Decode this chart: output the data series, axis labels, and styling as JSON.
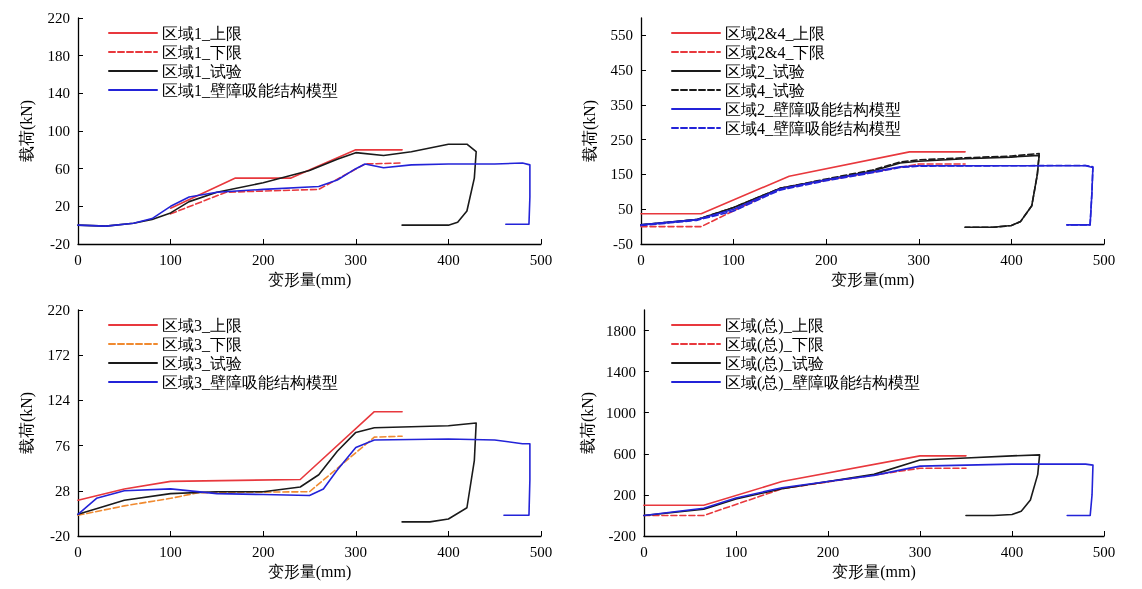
{
  "chart_data": [
    {
      "type": "line",
      "xlabel": "变形量(mm)",
      "ylabel": "载荷(kN)",
      "xlim": [
        0,
        500
      ],
      "xticks": [
        0,
        100,
        200,
        300,
        400,
        500
      ],
      "ylim": [
        -20,
        220
      ],
      "yticks": [
        -20,
        20,
        60,
        100,
        140,
        180,
        220
      ],
      "grid": false,
      "legend": "top left",
      "marker": "none",
      "series": [
        {
          "name": "区域1_上限",
          "color": "#e8383d",
          "line_style": "solid",
          "x": [
            100,
            170,
            230,
            300,
            350
          ],
          "values": [
            18,
            50,
            50,
            80,
            80
          ]
        },
        {
          "name": "区域1_下限",
          "color": "#e8383d",
          "line_style": "dashed",
          "x": [
            100,
            160,
            260,
            310,
            350
          ],
          "values": [
            12,
            35,
            38,
            65,
            66
          ]
        },
        {
          "name": "区域1_试验",
          "color": "#1a1a1a",
          "line_style": "solid",
          "x": [
            0,
            30,
            60,
            80,
            100,
            120,
            150,
            200,
            250,
            280,
            300,
            330,
            360,
            400,
            420,
            430,
            428,
            420,
            410,
            400,
            380,
            350
          ],
          "values": [
            0,
            -1,
            2,
            6,
            13,
            25,
            35,
            45,
            58,
            70,
            77,
            74,
            78,
            86,
            86,
            78,
            50,
            15,
            3,
            0,
            0,
            0
          ]
        },
        {
          "name": "区域1_壁障吸能结构模型",
          "color": "#2323d8",
          "line_style": "solid",
          "x": [
            0,
            30,
            60,
            80,
            100,
            120,
            150,
            200,
            260,
            280,
            300,
            310,
            330,
            360,
            400,
            450,
            480,
            488,
            488,
            487,
            470,
            462
          ],
          "values": [
            0,
            -1,
            2,
            7,
            20,
            30,
            35,
            38,
            41,
            48,
            60,
            65,
            61,
            64,
            65,
            65,
            66,
            64,
            30,
            1,
            1,
            1
          ]
        }
      ]
    },
    {
      "type": "line",
      "xlabel": "变形量(mm)",
      "ylabel": "载荷(kN)",
      "xlim": [
        0,
        500
      ],
      "xticks": [
        0,
        100,
        200,
        300,
        400,
        500
      ],
      "ylim": [
        -50,
        600
      ],
      "yticks": [
        -50,
        50,
        150,
        250,
        350,
        450,
        550
      ],
      "grid": false,
      "legend": "top left",
      "marker": "none",
      "series": [
        {
          "name": "区域2&4_上限",
          "color": "#e8383d",
          "line_style": "solid",
          "x": [
            0,
            65,
            160,
            290,
            350
          ],
          "values": [
            37,
            37,
            145,
            215,
            215
          ]
        },
        {
          "name": "区域2&4_下限",
          "color": "#e8383d",
          "line_style": "dashed",
          "x": [
            0,
            65,
            150,
            300,
            350
          ],
          "values": [
            0,
            0,
            110,
            180,
            180
          ]
        },
        {
          "name": "区域2_试验",
          "color": "#1a1a1a",
          "line_style": "solid",
          "x": [
            0,
            60,
            100,
            150,
            200,
            250,
            280,
            300,
            350,
            400,
            430,
            428,
            422,
            410,
            400,
            380,
            350
          ],
          "values": [
            5,
            20,
            55,
            110,
            135,
            160,
            183,
            188,
            195,
            200,
            205,
            150,
            60,
            15,
            3,
            -2,
            -2
          ]
        },
        {
          "name": "区域4_试验",
          "color": "#1a1a1a",
          "line_style": "dashed",
          "x": [
            0,
            60,
            100,
            150,
            200,
            250,
            280,
            300,
            350,
            400,
            430,
            428,
            422,
            410,
            400,
            380,
            350
          ],
          "values": [
            5,
            20,
            55,
            110,
            137,
            163,
            186,
            192,
            198,
            203,
            210,
            150,
            60,
            15,
            3,
            -2,
            -2
          ]
        },
        {
          "name": "区域2_壁障吸能结构模型",
          "color": "#2323d8",
          "line_style": "solid",
          "x": [
            0,
            60,
            100,
            150,
            200,
            250,
            280,
            300,
            400,
            480,
            488,
            487,
            485,
            470,
            460
          ],
          "values": [
            5,
            20,
            50,
            108,
            135,
            158,
            172,
            175,
            175,
            175,
            170,
            100,
            5,
            5,
            5
          ]
        },
        {
          "name": "区域4_壁障吸能结构模型",
          "color": "#2323d8",
          "line_style": "dashed",
          "x": [
            0,
            60,
            100,
            150,
            200,
            250,
            280,
            300,
            400,
            480,
            488,
            487,
            485,
            470,
            460
          ],
          "values": [
            3,
            18,
            45,
            105,
            132,
            155,
            170,
            174,
            175,
            176,
            172,
            100,
            5,
            5,
            5
          ]
        }
      ]
    },
    {
      "type": "line",
      "xlabel": "变形量(mm)",
      "ylabel": "载荷(kN)",
      "xlim": [
        0,
        500
      ],
      "xticks": [
        0,
        100,
        200,
        300,
        400,
        500
      ],
      "ylim": [
        -20,
        220
      ],
      "yticks": [
        -20,
        28,
        76,
        124,
        172,
        220
      ],
      "grid": false,
      "legend": "top left",
      "marker": "none",
      "series": [
        {
          "name": "区域3_上限",
          "color": "#e8383d",
          "line_style": "solid",
          "x": [
            0,
            50,
            100,
            240,
            320,
            350
          ],
          "values": [
            18,
            30,
            38,
            40,
            112,
            112
          ]
        },
        {
          "name": "区域3_下限",
          "color": "#f08a30",
          "line_style": "dashed",
          "x": [
            0,
            50,
            100,
            130,
            250,
            320,
            350
          ],
          "values": [
            2,
            12,
            20,
            26,
            27,
            85,
            86
          ]
        },
        {
          "name": "区域3_试验",
          "color": "#1a1a1a",
          "line_style": "solid",
          "x": [
            0,
            50,
            100,
            150,
            200,
            240,
            260,
            280,
            300,
            320,
            400,
            430,
            428,
            420,
            400,
            380,
            350
          ],
          "values": [
            3,
            18,
            25,
            27,
            27,
            32,
            45,
            70,
            90,
            95,
            97,
            100,
            60,
            10,
            -2,
            -5,
            -5
          ]
        },
        {
          "name": "区域3_壁障吸能结构模型",
          "color": "#2323d8",
          "line_style": "solid",
          "x": [
            0,
            20,
            50,
            100,
            150,
            200,
            250,
            265,
            280,
            300,
            320,
            400,
            450,
            480,
            488,
            488,
            487,
            470,
            460
          ],
          "values": [
            3,
            20,
            28,
            30,
            25,
            24,
            23,
            30,
            50,
            74,
            82,
            83,
            82,
            78,
            78,
            40,
            2,
            2,
            2
          ]
        }
      ]
    },
    {
      "type": "line",
      "xlabel": "变形量(mm)",
      "ylabel": "载荷(kN)",
      "xlim": [
        0,
        500
      ],
      "xticks": [
        0,
        100,
        200,
        300,
        400,
        500
      ],
      "ylim": [
        -200,
        2000
      ],
      "yticks": [
        -200,
        200,
        600,
        1000,
        1400,
        1800
      ],
      "grid": false,
      "legend": "top left",
      "marker": "none",
      "series": [
        {
          "name": "区域(总)_上限",
          "color": "#e8383d",
          "line_style": "solid",
          "x": [
            0,
            65,
            150,
            300,
            350
          ],
          "values": [
            100,
            100,
            330,
            580,
            580
          ]
        },
        {
          "name": "区域(总)_下限",
          "color": "#e8383d",
          "line_style": "dashed",
          "x": [
            0,
            65,
            150,
            300,
            350
          ],
          "values": [
            0,
            0,
            260,
            460,
            460
          ]
        },
        {
          "name": "区域(总)_试验",
          "color": "#1a1a1a",
          "line_style": "solid",
          "x": [
            0,
            65,
            100,
            150,
            200,
            250,
            300,
            350,
            400,
            430,
            428,
            420,
            410,
            400,
            380,
            350
          ],
          "values": [
            0,
            60,
            160,
            260,
            330,
            400,
            540,
            560,
            580,
            590,
            400,
            150,
            40,
            10,
            0,
            0
          ]
        },
        {
          "name": "区域(总)_壁障吸能结构模型",
          "color": "#2323d8",
          "line_style": "solid",
          "x": [
            0,
            65,
            100,
            150,
            200,
            250,
            300,
            350,
            400,
            480,
            488,
            487,
            485,
            470,
            460
          ],
          "values": [
            0,
            70,
            170,
            270,
            330,
            390,
            480,
            490,
            500,
            500,
            490,
            200,
            0,
            0,
            0
          ]
        }
      ]
    }
  ]
}
